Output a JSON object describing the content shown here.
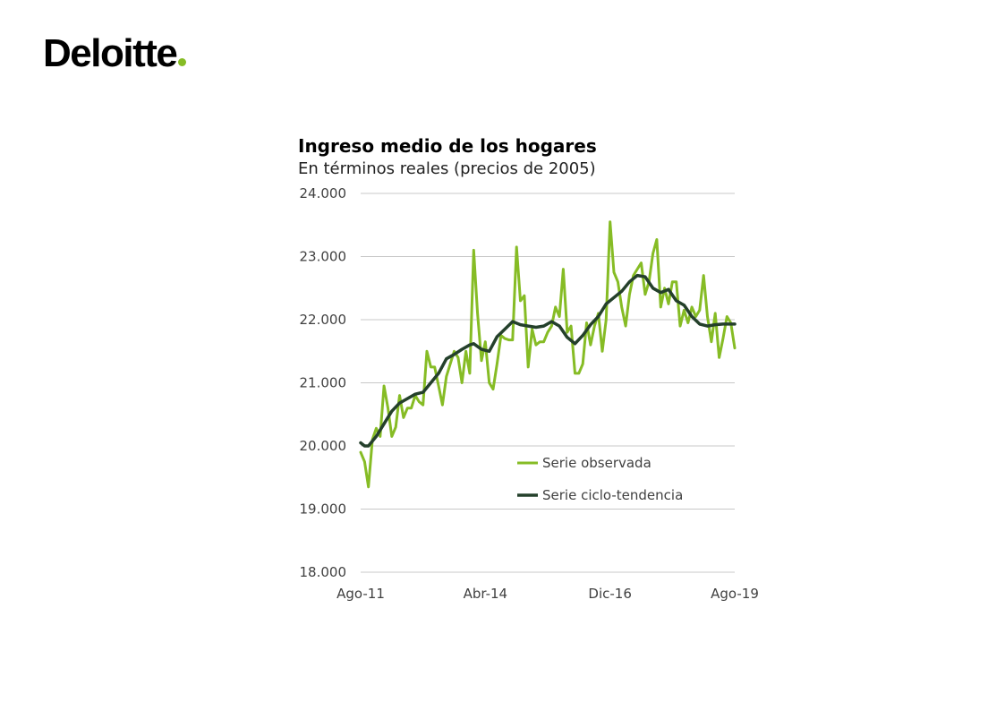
{
  "brand": {
    "name": "Deloitte",
    "dot_color": "#86bc25"
  },
  "chart_data": {
    "type": "line",
    "title": "Ingreso medio de los hogares",
    "subtitle": "En términos reales (precios de 2005)",
    "xlabel": "",
    "ylabel": "",
    "ylim": [
      18000,
      24000
    ],
    "y_ticks": [
      "18.000",
      "19.000",
      "20.000",
      "21.000",
      "22.000",
      "23.000",
      "24.000"
    ],
    "y_tick_values": [
      18000,
      19000,
      20000,
      21000,
      22000,
      23000,
      24000
    ],
    "x_tick_labels": [
      "Ago-11",
      "Abr-14",
      "Dic-16",
      "Ago-19"
    ],
    "x_tick_months": [
      "2011-08",
      "2014-04",
      "2016-12",
      "2019-08"
    ],
    "grid": true,
    "legend_position": "bottom-right-inside",
    "series": [
      {
        "name": "Serie observada",
        "color": "#86bc25",
        "months": [
          "2011-08",
          "2011-09",
          "2011-10",
          "2011-11",
          "2011-12",
          "2012-01",
          "2012-02",
          "2012-03",
          "2012-04",
          "2012-05",
          "2012-06",
          "2012-07",
          "2012-08",
          "2012-09",
          "2012-10",
          "2012-11",
          "2012-12",
          "2013-01",
          "2013-02",
          "2013-03",
          "2013-04",
          "2013-05",
          "2013-06",
          "2013-07",
          "2013-08",
          "2013-09",
          "2013-10",
          "2013-11",
          "2013-12",
          "2014-01",
          "2014-02",
          "2014-03",
          "2014-04",
          "2014-05",
          "2014-06",
          "2014-07",
          "2014-08",
          "2014-09",
          "2014-10",
          "2014-11",
          "2014-12",
          "2015-01",
          "2015-02",
          "2015-03",
          "2015-04",
          "2015-05",
          "2015-06",
          "2015-07",
          "2015-08",
          "2015-09",
          "2015-10",
          "2015-11",
          "2015-12",
          "2016-01",
          "2016-02",
          "2016-03",
          "2016-04",
          "2016-05",
          "2016-06",
          "2016-07",
          "2016-08",
          "2016-09",
          "2016-10",
          "2016-11",
          "2016-12",
          "2017-01",
          "2017-02",
          "2017-03",
          "2017-04",
          "2017-05",
          "2017-06",
          "2017-07",
          "2017-08",
          "2017-09",
          "2017-10",
          "2017-11",
          "2017-12",
          "2018-01",
          "2018-02",
          "2018-03",
          "2018-04",
          "2018-05",
          "2018-06",
          "2018-07",
          "2018-08",
          "2018-09",
          "2018-10",
          "2018-11",
          "2018-12",
          "2019-01",
          "2019-02",
          "2019-03",
          "2019-04",
          "2019-05",
          "2019-06",
          "2019-07",
          "2019-08"
        ],
        "values": [
          19900,
          19750,
          19350,
          20100,
          20280,
          20150,
          20950,
          20600,
          20150,
          20300,
          20800,
          20450,
          20600,
          20600,
          20800,
          20700,
          20650,
          21500,
          21250,
          21250,
          20950,
          20650,
          21100,
          21300,
          21500,
          21400,
          21000,
          21500,
          21150,
          23100,
          22100,
          21350,
          21650,
          21000,
          20900,
          21300,
          21750,
          21700,
          21680,
          21680,
          23150,
          22300,
          22380,
          21250,
          21850,
          21600,
          21650,
          21650,
          21800,
          21900,
          22200,
          22050,
          22800,
          21800,
          21900,
          21150,
          21150,
          21300,
          21950,
          21600,
          21900,
          22100,
          21500,
          22000,
          23550,
          22750,
          22600,
          22200,
          21900,
          22400,
          22700,
          22800,
          22900,
          22400,
          22600,
          23050,
          23270,
          22200,
          22500,
          22250,
          22600,
          22600,
          21900,
          22150,
          21950,
          22200,
          22050,
          22150,
          22700,
          22050,
          21650,
          22100,
          21400,
          21700,
          22050,
          21950,
          21550
        ]
      },
      {
        "name": "Serie ciclo-tendencia",
        "color": "#24402b",
        "months": [
          "2011-08",
          "2011-09",
          "2011-10",
          "2011-12",
          "2012-02",
          "2012-04",
          "2012-06",
          "2012-08",
          "2012-10",
          "2012-12",
          "2013-02",
          "2013-04",
          "2013-06",
          "2013-08",
          "2013-10",
          "2013-12",
          "2014-01",
          "2014-03",
          "2014-05",
          "2014-07",
          "2014-09",
          "2014-11",
          "2015-01",
          "2015-03",
          "2015-05",
          "2015-07",
          "2015-09",
          "2015-11",
          "2016-01",
          "2016-03",
          "2016-05",
          "2016-07",
          "2016-09",
          "2016-11",
          "2017-01",
          "2017-03",
          "2017-05",
          "2017-07",
          "2017-09",
          "2017-11",
          "2018-01",
          "2018-03",
          "2018-05",
          "2018-07",
          "2018-09",
          "2018-11",
          "2019-01",
          "2019-03",
          "2019-05",
          "2019-08"
        ],
        "values": [
          20050,
          20000,
          20000,
          20150,
          20350,
          20550,
          20680,
          20750,
          20820,
          20850,
          21000,
          21150,
          21380,
          21450,
          21530,
          21600,
          21620,
          21530,
          21500,
          21730,
          21850,
          21970,
          21920,
          21900,
          21880,
          21900,
          21970,
          21900,
          21720,
          21620,
          21750,
          21920,
          22050,
          22250,
          22350,
          22450,
          22600,
          22700,
          22680,
          22500,
          22430,
          22480,
          22300,
          22230,
          22050,
          21930,
          21900,
          21920,
          21930,
          21930
        ]
      }
    ]
  }
}
